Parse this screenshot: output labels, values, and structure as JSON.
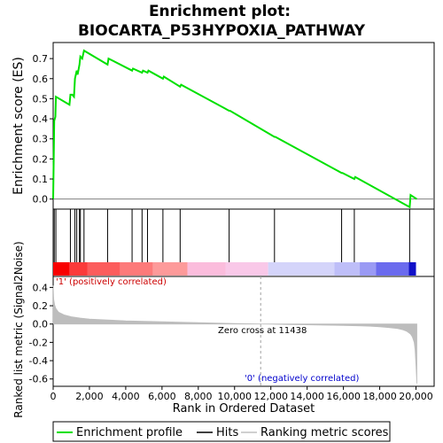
{
  "chart_data": {
    "type": "line",
    "title_line1": "Enrichment plot:",
    "title_line2": "BIOCARTA_P53HYPOXIA_PATHWAY",
    "top_panel": {
      "ylabel": "Enrichment score (ES)",
      "ylim": [
        -0.05,
        0.78
      ],
      "yticks": [
        "0.0",
        "0.1",
        "0.2",
        "0.3",
        "0.4",
        "0.5",
        "0.6",
        "0.7"
      ],
      "ytick_values": [
        0.0,
        0.1,
        0.2,
        0.3,
        0.4,
        0.5,
        0.6,
        0.7
      ],
      "es_curve": {
        "x": [
          0,
          60,
          120,
          150,
          900,
          950,
          1050,
          1150,
          1200,
          1300,
          1350,
          1450,
          1500,
          1600,
          1700,
          3000,
          3050,
          4350,
          4400,
          4900,
          4950,
          5200,
          5250,
          6050,
          6100,
          7000,
          7050,
          9700,
          9750,
          12200,
          12250,
          15900,
          15950,
          16600,
          16650,
          19650,
          19700,
          20050
        ],
        "y": [
          0.0,
          0.39,
          0.41,
          0.51,
          0.47,
          0.52,
          0.52,
          0.51,
          0.6,
          0.64,
          0.62,
          0.67,
          0.71,
          0.7,
          0.74,
          0.67,
          0.7,
          0.64,
          0.65,
          0.63,
          0.64,
          0.63,
          0.64,
          0.6,
          0.61,
          0.56,
          0.57,
          0.44,
          0.44,
          0.31,
          0.31,
          0.13,
          0.13,
          0.1,
          0.11,
          -0.04,
          0.02,
          0.0
        ]
      }
    },
    "hits": [
      60,
      150,
      950,
      1200,
      1300,
      1450,
      1500,
      1700,
      3000,
      4350,
      4900,
      5200,
      6050,
      7000,
      9700,
      12200,
      15900,
      16600,
      19650
    ],
    "bottom_panel": {
      "ylabel": "Ranked list metric (Signal2Noise)",
      "ylim": [
        -0.68,
        0.52
      ],
      "yticks": [
        "0.4",
        "0.2",
        "0.0",
        "-0.2",
        "-0.4",
        "-0.6"
      ],
      "ytick_values": [
        0.4,
        0.2,
        0.0,
        -0.2,
        -0.4,
        -0.6
      ],
      "metric": {
        "x": [
          0,
          30,
          80,
          150,
          300,
          600,
          1000,
          1500,
          2000,
          3000,
          4000,
          5000,
          6000,
          7000,
          8000,
          9000,
          10000,
          11000,
          11438,
          12000,
          13000,
          14000,
          15000,
          16000,
          17000,
          17500,
          18000,
          18500,
          19000,
          19300,
          19500,
          19700,
          19800,
          19900,
          19950,
          20000,
          20050
        ],
        "y": [
          0.42,
          0.27,
          0.21,
          0.17,
          0.13,
          0.1,
          0.08,
          0.065,
          0.055,
          0.045,
          0.035,
          0.03,
          0.025,
          0.02,
          0.015,
          0.01,
          0.006,
          0.002,
          0.0,
          -0.002,
          -0.005,
          -0.008,
          -0.012,
          -0.015,
          -0.02,
          -0.024,
          -0.03,
          -0.038,
          -0.05,
          -0.065,
          -0.08,
          -0.11,
          -0.14,
          -0.2,
          -0.28,
          -0.45,
          -0.65
        ]
      },
      "zero_cross_label": "Zero cross at 11438",
      "zero_cross": 11438,
      "pos_label": "'1' (positively correlated)",
      "neg_label": "'0' (negatively correlated)"
    },
    "xlabel": "Rank in Ordered Dataset",
    "xlim": [
      0,
      21000
    ],
    "xticks": [
      "0",
      "2,000",
      "4,000",
      "6,000",
      "8,000",
      "10,000",
      "12,000",
      "14,000",
      "16,000",
      "18,000",
      "20,000"
    ],
    "xtick_values": [
      0,
      2000,
      4000,
      6000,
      8000,
      10000,
      12000,
      14000,
      16000,
      18000,
      20000
    ],
    "heat_bar": [
      {
        "from": 0,
        "to": 900,
        "color": "#f80000"
      },
      {
        "from": 900,
        "to": 1900,
        "color": "#fb3a3a"
      },
      {
        "from": 1900,
        "to": 3700,
        "color": "#fc5c5c"
      },
      {
        "from": 3700,
        "to": 5500,
        "color": "#fd7a7a"
      },
      {
        "from": 5500,
        "to": 7400,
        "color": "#fd9a9a"
      },
      {
        "from": 7400,
        "to": 9500,
        "color": "#fbbcdc"
      },
      {
        "from": 9500,
        "to": 11850,
        "color": "#f9c8e8"
      },
      {
        "from": 11850,
        "to": 15500,
        "color": "#d4d4fa"
      },
      {
        "from": 15500,
        "to": 16900,
        "color": "#bebef8"
      },
      {
        "from": 16900,
        "to": 17800,
        "color": "#9a9af4"
      },
      {
        "from": 17800,
        "to": 19600,
        "color": "#6a6aee"
      },
      {
        "from": 19600,
        "to": 20000,
        "color": "#1010c8"
      }
    ],
    "legend": [
      {
        "label": "Enrichment profile",
        "color": "#00e000"
      },
      {
        "label": "Hits",
        "color": "#000000"
      },
      {
        "label": "Ranking metric scores",
        "color": "#c0c0c0"
      }
    ],
    "colors": {
      "es": "#00e000",
      "hit": "#000000",
      "metric": "#bdbdbd",
      "zero_cross_line": "#a0a0a0"
    }
  }
}
